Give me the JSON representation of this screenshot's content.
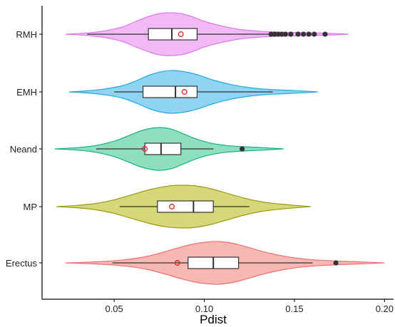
{
  "chart_data": {
    "type": "violin",
    "title": "",
    "xlabel": "Pdist",
    "ylabel": "",
    "xlim": [
      0.01,
      0.205
    ],
    "x_ticks": [
      "0.05",
      "0.10",
      "0.15",
      "0.20"
    ],
    "x_tick_values": [
      0.05,
      0.1,
      0.15,
      0.2
    ],
    "grid": false,
    "legend": "none",
    "categories": [
      "RMH",
      "EMH",
      "Neand",
      "MP",
      "Erectus"
    ],
    "series": [
      {
        "name": "RMH",
        "color": "#dd78e8",
        "fill": "#f1b9f6",
        "violin": {
          "xs": [
            0.023,
            0.035,
            0.045,
            0.055,
            0.062,
            0.07,
            0.076,
            0.082,
            0.088,
            0.094,
            0.1,
            0.11,
            0.12,
            0.13,
            0.14,
            0.15,
            0.16,
            0.17,
            0.18
          ],
          "ws": [
            0.0,
            0.06,
            0.16,
            0.35,
            0.6,
            0.85,
            0.98,
            1.0,
            0.95,
            0.8,
            0.6,
            0.38,
            0.22,
            0.14,
            0.1,
            0.08,
            0.06,
            0.04,
            0.0
          ]
        },
        "box": {
          "whisker_low": 0.035,
          "q1": 0.069,
          "median": 0.082,
          "q3": 0.096,
          "whisker_high": 0.136
        },
        "mean": 0.087,
        "outliers": [
          0.137,
          0.139,
          0.141,
          0.143,
          0.145,
          0.148,
          0.152,
          0.155,
          0.158,
          0.161,
          0.167
        ]
      },
      {
        "name": "EMH",
        "color": "#1fa9e1",
        "fill": "#8fd4f3",
        "violin": {
          "xs": [
            0.025,
            0.035,
            0.045,
            0.055,
            0.063,
            0.07,
            0.077,
            0.083,
            0.09,
            0.097,
            0.105,
            0.115,
            0.125,
            0.135,
            0.145,
            0.155,
            0.163
          ],
          "ws": [
            0.0,
            0.05,
            0.14,
            0.3,
            0.55,
            0.8,
            0.96,
            1.0,
            0.93,
            0.78,
            0.55,
            0.34,
            0.2,
            0.12,
            0.08,
            0.04,
            0.0
          ]
        },
        "box": {
          "whisker_low": 0.05,
          "q1": 0.066,
          "median": 0.084,
          "q3": 0.096,
          "whisker_high": 0.138
        },
        "mean": 0.089,
        "outliers": []
      },
      {
        "name": "Neand",
        "color": "#1ab07d",
        "fill": "#8ddfc0",
        "violin": {
          "xs": [
            0.017,
            0.03,
            0.04,
            0.05,
            0.058,
            0.065,
            0.071,
            0.076,
            0.082,
            0.088,
            0.095,
            0.103,
            0.112,
            0.122,
            0.132,
            0.144
          ],
          "ws": [
            0.0,
            0.06,
            0.16,
            0.36,
            0.62,
            0.85,
            0.97,
            1.0,
            0.92,
            0.72,
            0.48,
            0.28,
            0.16,
            0.1,
            0.06,
            0.0
          ]
        },
        "box": {
          "whisker_low": 0.04,
          "q1": 0.067,
          "median": 0.076,
          "q3": 0.087,
          "whisker_high": 0.105
        },
        "mean": 0.067,
        "outliers": [
          0.121
        ]
      },
      {
        "name": "MP",
        "color": "#9c9a12",
        "fill": "#d6d67a",
        "violin": {
          "xs": [
            0.018,
            0.03,
            0.04,
            0.05,
            0.06,
            0.07,
            0.08,
            0.088,
            0.095,
            0.103,
            0.112,
            0.122,
            0.132,
            0.142,
            0.15,
            0.159
          ],
          "ws": [
            0.0,
            0.06,
            0.15,
            0.32,
            0.56,
            0.8,
            0.96,
            1.0,
            0.97,
            0.85,
            0.64,
            0.4,
            0.22,
            0.12,
            0.06,
            0.0
          ]
        },
        "box": {
          "whisker_low": 0.053,
          "q1": 0.074,
          "median": 0.094,
          "q3": 0.105,
          "whisker_high": 0.125
        },
        "mean": 0.082,
        "outliers": []
      },
      {
        "name": "Erectus",
        "color": "#ee7070",
        "fill": "#f7b7b3",
        "violin": {
          "xs": [
            0.023,
            0.04,
            0.055,
            0.068,
            0.078,
            0.087,
            0.095,
            0.102,
            0.108,
            0.115,
            0.123,
            0.133,
            0.145,
            0.158,
            0.17,
            0.185,
            0.2
          ],
          "ws": [
            0.0,
            0.05,
            0.14,
            0.3,
            0.52,
            0.74,
            0.9,
            0.98,
            1.0,
            0.93,
            0.76,
            0.52,
            0.3,
            0.16,
            0.1,
            0.05,
            0.0
          ]
        },
        "box": {
          "whisker_low": 0.049,
          "q1": 0.091,
          "median": 0.105,
          "q3": 0.119,
          "whisker_high": 0.16
        },
        "mean": 0.085,
        "outliers": [
          0.173
        ]
      }
    ]
  }
}
